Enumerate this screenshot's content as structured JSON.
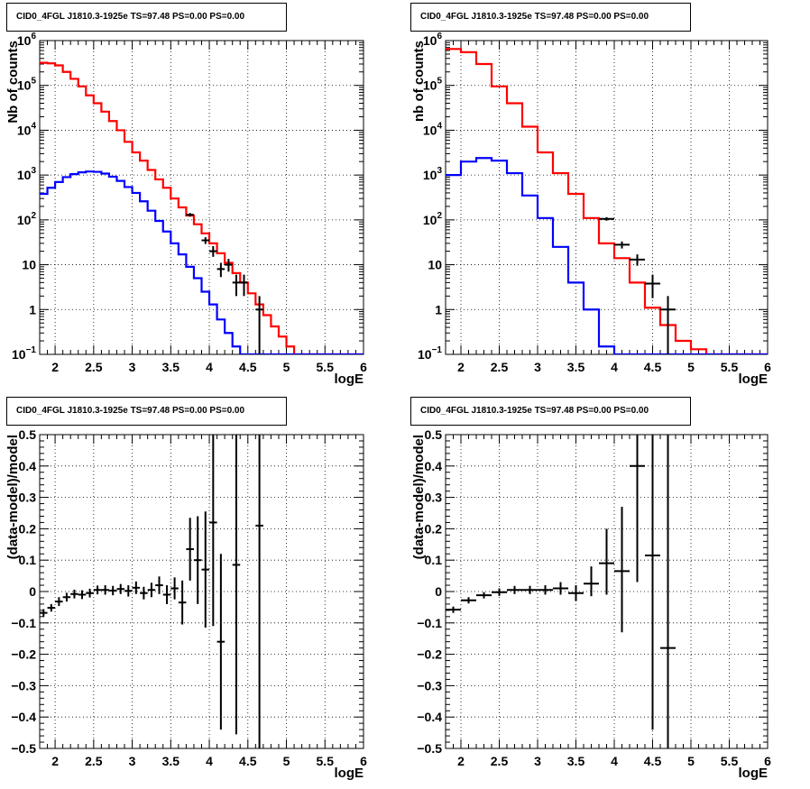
{
  "pads": [
    {
      "title": "CID0_4FGL J1810.3-1925e TS=97.48 PS=0.00 PS=0.00"
    },
    {
      "title": "CID0_4FGL J1810.3-1925e TS=97.48 PS=0.00 PS=0.00"
    },
    {
      "title": "CID0_4FGL J1810.3-1925e TS=97.48 PS=0.00 PS=0.00"
    },
    {
      "title": "CID0_4FGL J1810.3-1925e TS=97.48 PS=0.00 PS=0.00"
    }
  ],
  "colors": {
    "model_total": "#ff0000",
    "model_source": "#0000ff",
    "data": "#000000",
    "grid": "#000000"
  },
  "chart_data": [
    {
      "type": "line",
      "title": "CID0_4FGL J1810.3-1925e TS=97.48 PS=0.00 PS=0.00",
      "xlabel": "logE",
      "ylabel": "Nb of counts",
      "xlim": [
        1.8,
        6.0
      ],
      "ylim": [
        0.1,
        1000000
      ],
      "yscale": "log",
      "grid": true,
      "x_ticks": [
        "2",
        "2.5",
        "3",
        "3.5",
        "4",
        "4.5",
        "5",
        "5.5",
        "6"
      ],
      "y_ticks": [
        {
          "value": 0.1,
          "base": "10",
          "exp": "−1"
        },
        {
          "value": 1,
          "label": "1"
        },
        {
          "value": 10,
          "label": "10"
        },
        {
          "value": 100,
          "base": "10",
          "exp": "2"
        },
        {
          "value": 1000,
          "base": "10",
          "exp": "3"
        },
        {
          "value": 10000,
          "base": "10",
          "exp": "4"
        },
        {
          "value": 100000,
          "base": "10",
          "exp": "5"
        },
        {
          "value": 1000000,
          "base": "10",
          "exp": "6"
        }
      ],
      "bin_edges": [
        1.8,
        1.9,
        2.0,
        2.1,
        2.2,
        2.3,
        2.4,
        2.5,
        2.6,
        2.7,
        2.8,
        2.9,
        3.0,
        3.1,
        3.2,
        3.3,
        3.4,
        3.5,
        3.6,
        3.7,
        3.8,
        3.9,
        4.0,
        4.1,
        4.2,
        4.3,
        4.4,
        4.5,
        4.6,
        4.7,
        4.8,
        4.9,
        5.0,
        5.1,
        5.2,
        5.3,
        5.4,
        5.5,
        5.6,
        5.7,
        5.8,
        5.9,
        6.0
      ],
      "series": [
        {
          "color": "#ff0000",
          "values": [
            320000,
            310000,
            280000,
            200000,
            140000,
            95000,
            60000,
            40000,
            26000,
            16000,
            10000,
            5500,
            3200,
            2100,
            1300,
            800,
            520,
            300,
            190,
            125,
            80,
            50,
            30,
            18,
            11,
            6.5,
            4,
            2.3,
            1.3,
            0.75,
            0.42,
            0.25,
            0.15,
            0.09,
            0.06,
            0.05,
            0.05,
            0.05,
            0.05,
            0.05,
            0.05,
            0.05
          ]
        },
        {
          "color": "#0000ff",
          "values": [
            380,
            520,
            700,
            900,
            1050,
            1150,
            1200,
            1180,
            1080,
            920,
            740,
            540,
            400,
            260,
            160,
            95,
            55,
            30,
            17,
            9,
            5,
            2.5,
            1.3,
            0.6,
            0.3,
            0.15,
            0.08,
            0.05,
            0.05,
            0.05,
            0.05,
            0.05,
            0.05,
            0.05,
            0.05,
            0.05,
            0.05,
            0.05,
            0.05,
            0.05,
            0.05,
            0.05
          ]
        }
      ],
      "points": [
        {
          "x": 3.75,
          "y": 130,
          "xerr": 0.05,
          "ylo": 118,
          "yhi": 142
        },
        {
          "x": 3.95,
          "y": 35,
          "xerr": 0.05,
          "ylo": 29,
          "yhi": 41
        },
        {
          "x": 4.05,
          "y": 20,
          "xerr": 0.05,
          "ylo": 15,
          "yhi": 26
        },
        {
          "x": 4.15,
          "y": 8,
          "xerr": 0.05,
          "ylo": 5.3,
          "yhi": 11
        },
        {
          "x": 4.25,
          "y": 10,
          "xerr": 0.05,
          "ylo": 7,
          "yhi": 13.5
        },
        {
          "x": 4.35,
          "y": 4,
          "xerr": 0.05,
          "ylo": 2,
          "yhi": 6
        },
        {
          "x": 4.45,
          "y": 4,
          "xerr": 0.05,
          "ylo": 2,
          "yhi": 6
        },
        {
          "x": 4.65,
          "y": 1,
          "xerr": 0.05,
          "ylo": 0.05,
          "yhi": 2
        }
      ]
    },
    {
      "type": "line",
      "title": "CID0_4FGL J1810.3-1925e TS=97.48 PS=0.00 PS=0.00",
      "xlabel": "logE",
      "ylabel": "nb of counts",
      "xlim": [
        1.8,
        6.0
      ],
      "ylim": [
        0.1,
        1000000
      ],
      "yscale": "log",
      "grid": true,
      "x_ticks": [
        "2",
        "2.5",
        "3",
        "3.5",
        "4",
        "4.5",
        "5",
        "5.5",
        "6"
      ],
      "y_ticks": [
        {
          "value": 0.1,
          "base": "10",
          "exp": "−1"
        },
        {
          "value": 1,
          "label": "1"
        },
        {
          "value": 10,
          "label": "10"
        },
        {
          "value": 100,
          "base": "10",
          "exp": "2"
        },
        {
          "value": 1000,
          "base": "10",
          "exp": "3"
        },
        {
          "value": 10000,
          "base": "10",
          "exp": "4"
        },
        {
          "value": 100000,
          "base": "10",
          "exp": "5"
        },
        {
          "value": 1000000,
          "base": "10",
          "exp": "6"
        }
      ],
      "bin_edges": [
        1.8,
        2.0,
        2.2,
        2.4,
        2.6,
        2.8,
        3.0,
        3.2,
        3.4,
        3.6,
        3.8,
        4.0,
        4.2,
        4.4,
        4.6,
        4.8,
        5.0,
        5.2,
        5.4,
        5.6,
        5.8,
        6.0
      ],
      "series": [
        {
          "color": "#ff0000",
          "values": [
            650000,
            550000,
            300000,
            95000,
            40000,
            12000,
            3200,
            1100,
            380,
            110,
            30,
            14,
            4,
            1.1,
            0.45,
            0.2,
            0.13,
            0.05,
            0.05,
            0.05,
            0.05
          ]
        },
        {
          "color": "#0000ff",
          "values": [
            1000,
            2000,
            2400,
            2100,
            1100,
            350,
            110,
            25,
            4,
            1,
            0.15,
            0.05,
            0.05,
            0.05,
            0.05,
            0.05,
            0.05,
            0.05,
            0.05,
            0.05,
            0.05
          ]
        }
      ],
      "points": [
        {
          "x": 3.9,
          "y": 105,
          "xerr": 0.1,
          "ylo": 96,
          "yhi": 115
        },
        {
          "x": 4.1,
          "y": 28,
          "xerr": 0.1,
          "ylo": 23,
          "yhi": 33
        },
        {
          "x": 4.3,
          "y": 13,
          "xerr": 0.1,
          "ylo": 9.5,
          "yhi": 17
        },
        {
          "x": 4.5,
          "y": 3.8,
          "xerr": 0.1,
          "ylo": 1.8,
          "yhi": 6
        },
        {
          "x": 4.7,
          "y": 1,
          "xerr": 0.1,
          "ylo": 0.05,
          "yhi": 2
        }
      ]
    },
    {
      "type": "scatter",
      "title": "CID0_4FGL J1810.3-1925e TS=97.48 PS=0.00 PS=0.00",
      "xlabel": "logE",
      "ylabel": "(data-model)/model",
      "xlim": [
        1.8,
        6.0
      ],
      "ylim": [
        -0.5,
        0.5
      ],
      "grid": true,
      "x_ticks": [
        "2",
        "2.5",
        "3",
        "3.5",
        "4",
        "4.5",
        "5",
        "5.5",
        "6"
      ],
      "y_ticks": [
        {
          "value": -0.5,
          "label": "−0.5"
        },
        {
          "value": -0.4,
          "label": "−0.4"
        },
        {
          "value": -0.3,
          "label": "−0.3"
        },
        {
          "value": -0.2,
          "label": "−0.2"
        },
        {
          "value": -0.1,
          "label": "−0.1"
        },
        {
          "value": 0,
          "label": "0"
        },
        {
          "value": 0.1,
          "label": "0.1"
        },
        {
          "value": 0.2,
          "label": "0.2"
        },
        {
          "value": 0.3,
          "label": "0.3"
        },
        {
          "value": 0.4,
          "label": "0.4"
        },
        {
          "value": 0.5,
          "label": "0.5"
        }
      ],
      "points": [
        {
          "x": 1.85,
          "y": -0.068,
          "xerr": 0.05,
          "ylo": -0.08,
          "yhi": -0.056
        },
        {
          "x": 1.95,
          "y": -0.052,
          "xerr": 0.05,
          "ylo": -0.064,
          "yhi": -0.04
        },
        {
          "x": 2.05,
          "y": -0.032,
          "xerr": 0.05,
          "ylo": -0.046,
          "yhi": -0.018
        },
        {
          "x": 2.15,
          "y": -0.018,
          "xerr": 0.05,
          "ylo": -0.032,
          "yhi": -0.004
        },
        {
          "x": 2.25,
          "y": -0.008,
          "xerr": 0.05,
          "ylo": -0.022,
          "yhi": 0.006
        },
        {
          "x": 2.35,
          "y": -0.01,
          "xerr": 0.05,
          "ylo": -0.024,
          "yhi": 0.004
        },
        {
          "x": 2.45,
          "y": -0.005,
          "xerr": 0.05,
          "ylo": -0.019,
          "yhi": 0.009
        },
        {
          "x": 2.55,
          "y": 0.005,
          "xerr": 0.05,
          "ylo": -0.009,
          "yhi": 0.019
        },
        {
          "x": 2.65,
          "y": 0.005,
          "xerr": 0.05,
          "ylo": -0.01,
          "yhi": 0.02
        },
        {
          "x": 2.75,
          "y": 0.003,
          "xerr": 0.05,
          "ylo": -0.012,
          "yhi": 0.018
        },
        {
          "x": 2.85,
          "y": 0.008,
          "xerr": 0.05,
          "ylo": -0.008,
          "yhi": 0.024
        },
        {
          "x": 2.95,
          "y": 0.002,
          "xerr": 0.05,
          "ylo": -0.016,
          "yhi": 0.02
        },
        {
          "x": 3.05,
          "y": 0.012,
          "xerr": 0.05,
          "ylo": -0.008,
          "yhi": 0.032
        },
        {
          "x": 3.15,
          "y": -0.005,
          "xerr": 0.05,
          "ylo": -0.025,
          "yhi": 0.015
        },
        {
          "x": 3.25,
          "y": 0.005,
          "xerr": 0.05,
          "ylo": -0.018,
          "yhi": 0.028
        },
        {
          "x": 3.35,
          "y": 0.02,
          "xerr": 0.05,
          "ylo": -0.008,
          "yhi": 0.048
        },
        {
          "x": 3.45,
          "y": -0.01,
          "xerr": 0.05,
          "ylo": -0.04,
          "yhi": 0.02
        },
        {
          "x": 3.55,
          "y": 0.01,
          "xerr": 0.05,
          "ylo": -0.025,
          "yhi": 0.045
        },
        {
          "x": 3.65,
          "y": -0.035,
          "xerr": 0.05,
          "ylo": -0.105,
          "yhi": 0.035
        },
        {
          "x": 3.75,
          "y": 0.135,
          "xerr": 0.05,
          "ylo": 0.035,
          "yhi": 0.235
        },
        {
          "x": 3.85,
          "y": 0.1,
          "xerr": 0.05,
          "ylo": -0.04,
          "yhi": 0.24
        },
        {
          "x": 3.95,
          "y": 0.07,
          "xerr": 0.05,
          "ylo": -0.115,
          "yhi": 0.255
        },
        {
          "x": 4.05,
          "y": 0.22,
          "xerr": 0.05,
          "ylo": -0.11,
          "yhi": 0.5
        },
        {
          "x": 4.15,
          "y": -0.16,
          "xerr": 0.05,
          "ylo": -0.44,
          "yhi": 0.12
        },
        {
          "x": 4.35,
          "y": 0.085,
          "xerr": 0.05,
          "ylo": -0.455,
          "yhi": 0.5
        },
        {
          "x": 4.65,
          "y": 0.21,
          "xerr": 0.05,
          "ylo": -0.5,
          "yhi": 0.5
        }
      ]
    },
    {
      "type": "scatter",
      "title": "CID0_4FGL J1810.3-1925e TS=97.48 PS=0.00 PS=0.00",
      "xlabel": "logE",
      "ylabel": "(data-model)/model",
      "xlim": [
        1.8,
        6.0
      ],
      "ylim": [
        -0.5,
        0.5
      ],
      "grid": true,
      "x_ticks": [
        "2",
        "2.5",
        "3",
        "3.5",
        "4",
        "4.5",
        "5",
        "5.5",
        "6"
      ],
      "y_ticks": [
        {
          "value": -0.5,
          "label": "−0.5"
        },
        {
          "value": -0.4,
          "label": "−0.4"
        },
        {
          "value": -0.3,
          "label": "−0.3"
        },
        {
          "value": -0.2,
          "label": "−0.2"
        },
        {
          "value": -0.1,
          "label": "−0.1"
        },
        {
          "value": 0,
          "label": "0"
        },
        {
          "value": 0.1,
          "label": "0.1"
        },
        {
          "value": 0.2,
          "label": "0.2"
        },
        {
          "value": 0.3,
          "label": "0.3"
        },
        {
          "value": 0.4,
          "label": "0.4"
        },
        {
          "value": 0.5,
          "label": "0.5"
        }
      ],
      "points": [
        {
          "x": 1.9,
          "y": -0.058,
          "xerr": 0.1,
          "ylo": -0.068,
          "yhi": -0.048
        },
        {
          "x": 2.1,
          "y": -0.028,
          "xerr": 0.1,
          "ylo": -0.038,
          "yhi": -0.018
        },
        {
          "x": 2.3,
          "y": -0.012,
          "xerr": 0.1,
          "ylo": -0.022,
          "yhi": -0.002
        },
        {
          "x": 2.5,
          "y": -0.002,
          "xerr": 0.1,
          "ylo": -0.014,
          "yhi": 0.01
        },
        {
          "x": 2.7,
          "y": 0.005,
          "xerr": 0.1,
          "ylo": -0.008,
          "yhi": 0.018
        },
        {
          "x": 2.9,
          "y": 0.005,
          "xerr": 0.1,
          "ylo": -0.008,
          "yhi": 0.018
        },
        {
          "x": 3.1,
          "y": 0.005,
          "xerr": 0.1,
          "ylo": -0.01,
          "yhi": 0.02
        },
        {
          "x": 3.3,
          "y": 0.01,
          "xerr": 0.1,
          "ylo": -0.01,
          "yhi": 0.03
        },
        {
          "x": 3.5,
          "y": -0.005,
          "xerr": 0.1,
          "ylo": -0.03,
          "yhi": 0.02
        },
        {
          "x": 3.7,
          "y": 0.025,
          "xerr": 0.1,
          "ylo": -0.015,
          "yhi": 0.08
        },
        {
          "x": 3.9,
          "y": 0.09,
          "xerr": 0.1,
          "ylo": -0.01,
          "yhi": 0.2
        },
        {
          "x": 4.1,
          "y": 0.065,
          "xerr": 0.1,
          "ylo": -0.13,
          "yhi": 0.27
        },
        {
          "x": 4.3,
          "y": 0.4,
          "xerr": 0.1,
          "ylo": 0.03,
          "yhi": 0.5
        },
        {
          "x": 4.5,
          "y": 0.115,
          "xerr": 0.1,
          "ylo": -0.44,
          "yhi": 0.5
        },
        {
          "x": 4.7,
          "y": -0.18,
          "xerr": 0.1,
          "ylo": -0.5,
          "yhi": 0.5
        }
      ]
    }
  ]
}
